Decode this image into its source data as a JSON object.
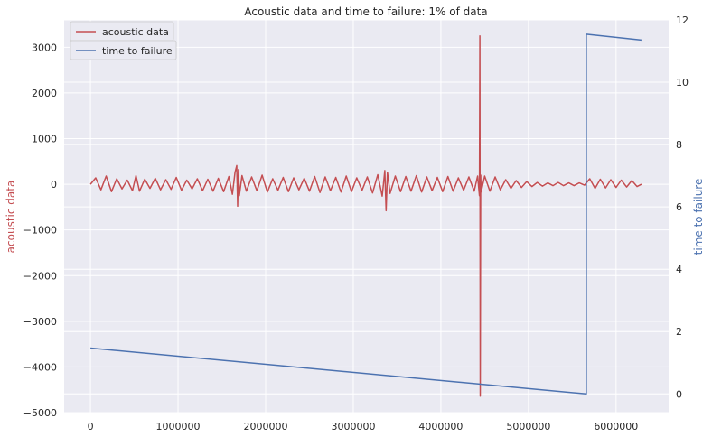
{
  "chart_data": {
    "type": "line",
    "title": "Acoustic data and time to failure: 1% of data",
    "xlabel": "",
    "ylabel_left": "acoustic data",
    "ylabel_right": "time to failure",
    "xlim": [
      -300000,
      6600000
    ],
    "ylim_left": [
      -5000,
      3600
    ],
    "ylim_right": [
      -0.6,
      12
    ],
    "x_ticks": [
      0,
      1000000,
      2000000,
      3000000,
      4000000,
      5000000,
      6000000
    ],
    "x_tick_labels": [
      "0",
      "1000000",
      "2000000",
      "3000000",
      "4000000",
      "5000000",
      "6000000"
    ],
    "y_left_ticks": [
      -5000,
      -4000,
      -3000,
      -2000,
      -1000,
      0,
      1000,
      2000,
      3000
    ],
    "y_left_tick_labels": [
      "−5000",
      "−4000",
      "−3000",
      "−2000",
      "−1000",
      "0",
      "1000",
      "2000",
      "3000"
    ],
    "y_right_ticks": [
      0,
      2,
      4,
      6,
      8,
      10,
      12
    ],
    "y_right_tick_labels": [
      "0",
      "2",
      "4",
      "6",
      "8",
      "10",
      "12"
    ],
    "grid": true,
    "legend_position": "top-left",
    "series": [
      {
        "name": "acoustic data",
        "axis": "left",
        "color": "#c44e52",
        "x": [
          0,
          60000,
          120000,
          180000,
          240000,
          300000,
          360000,
          420000,
          480000,
          520000,
          560000,
          620000,
          680000,
          740000,
          800000,
          860000,
          920000,
          980000,
          1040000,
          1100000,
          1160000,
          1220000,
          1280000,
          1340000,
          1400000,
          1460000,
          1520000,
          1580000,
          1620000,
          1650000,
          1670000,
          1680000,
          1690000,
          1700000,
          1730000,
          1780000,
          1840000,
          1900000,
          1960000,
          2020000,
          2080000,
          2140000,
          2200000,
          2260000,
          2320000,
          2380000,
          2440000,
          2500000,
          2560000,
          2620000,
          2680000,
          2740000,
          2800000,
          2860000,
          2920000,
          2980000,
          3040000,
          3100000,
          3160000,
          3220000,
          3280000,
          3330000,
          3360000,
          3375000,
          3390000,
          3420000,
          3480000,
          3540000,
          3600000,
          3660000,
          3720000,
          3780000,
          3840000,
          3900000,
          3960000,
          4020000,
          4080000,
          4140000,
          4200000,
          4260000,
          4320000,
          4380000,
          4420000,
          4440000,
          4445000,
          4450000,
          4455000,
          4460000,
          4500000,
          4560000,
          4620000,
          4680000,
          4740000,
          4800000,
          4860000,
          4920000,
          4980000,
          5040000,
          5100000,
          5160000,
          5220000,
          5280000,
          5340000,
          5400000,
          5460000,
          5520000,
          5580000,
          5640000,
          5700000,
          5760000,
          5820000,
          5880000,
          5940000,
          6000000,
          6060000,
          6120000,
          6180000,
          6240000,
          6290000
        ],
        "y": [
          0,
          140,
          -120,
          180,
          -160,
          120,
          -100,
          90,
          -140,
          190,
          -150,
          110,
          -90,
          130,
          -120,
          100,
          -110,
          150,
          -130,
          90,
          -100,
          120,
          -140,
          110,
          -150,
          130,
          -160,
          170,
          -220,
          260,
          410,
          -480,
          320,
          -250,
          190,
          -150,
          160,
          -140,
          200,
          -170,
          120,
          -130,
          150,
          -160,
          140,
          -120,
          130,
          -150,
          170,
          -180,
          160,
          -140,
          150,
          -170,
          180,
          -160,
          140,
          -130,
          160,
          -190,
          210,
          -260,
          300,
          -580,
          260,
          -200,
          180,
          -160,
          170,
          -150,
          190,
          -170,
          160,
          -140,
          150,
          -160,
          170,
          -150,
          140,
          -130,
          160,
          -150,
          180,
          -250,
          3250,
          -4640,
          200,
          -170,
          180,
          -150,
          160,
          -120,
          100,
          -90,
          80,
          -70,
          60,
          -50,
          40,
          -40,
          30,
          -30,
          40,
          -30,
          30,
          -30,
          30,
          -20,
          120,
          -90,
          110,
          -80,
          100,
          -70,
          90,
          -60,
          80,
          -50,
          0
        ]
      },
      {
        "name": "time to failure",
        "axis": "right",
        "color": "#4c72b0",
        "x": [
          0,
          5660000,
          5660000,
          6290000
        ],
        "y": [
          1.47,
          0.0,
          11.54,
          11.35
        ]
      }
    ]
  }
}
